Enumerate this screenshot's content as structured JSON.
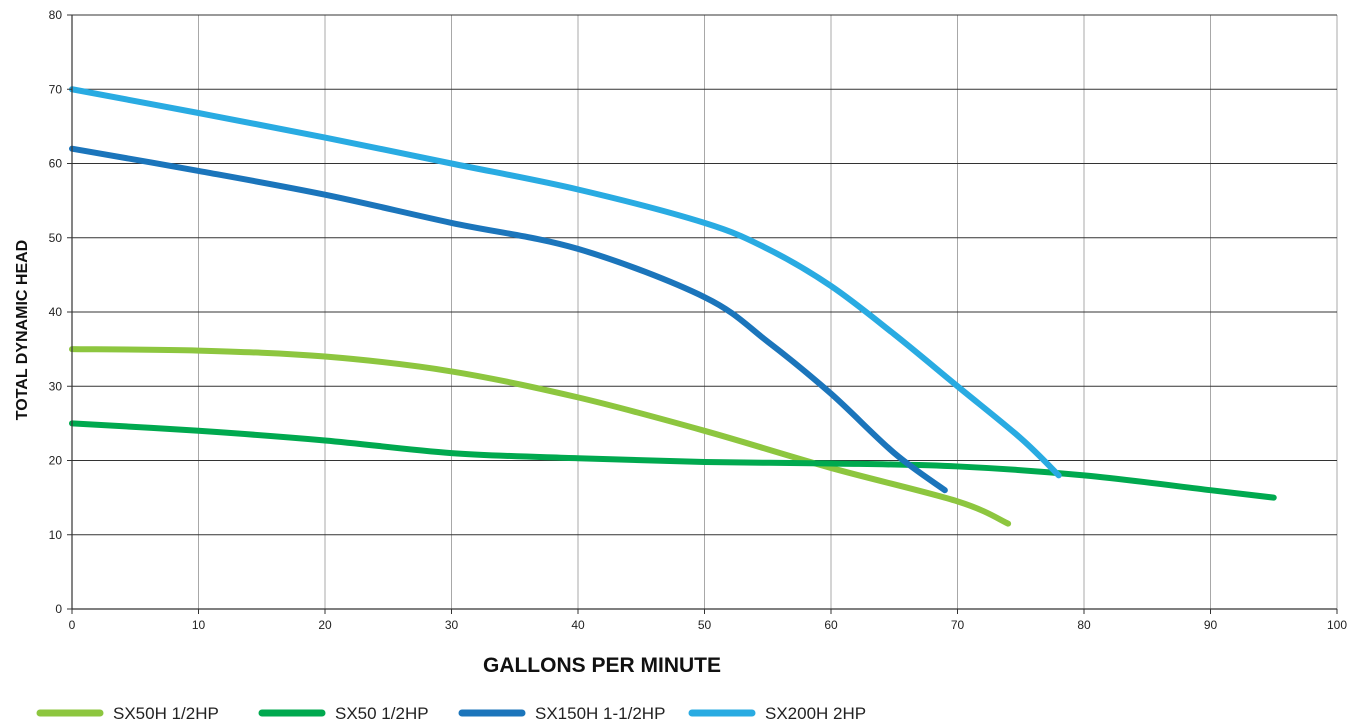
{
  "chart_data": {
    "type": "line",
    "xlabel": "GALLONS PER MINUTE",
    "ylabel": "TOTAL DYNAMIC HEAD",
    "xlim": [
      0,
      100
    ],
    "ylim": [
      0,
      80
    ],
    "xticks": [
      0,
      10,
      20,
      30,
      40,
      50,
      60,
      70,
      80,
      90,
      100
    ],
    "yticks": [
      0,
      10,
      20,
      30,
      40,
      50,
      60,
      70,
      80
    ],
    "grid": true,
    "legend_position": "bottom-left",
    "series": [
      {
        "name": "SX50H 1/2HP",
        "color": "#8dc63f",
        "x": [
          0,
          10,
          20,
          30,
          40,
          50,
          60,
          70,
          74
        ],
        "y": [
          35,
          34.8,
          34,
          32,
          28.5,
          24,
          19,
          14.5,
          11.5
        ]
      },
      {
        "name": "SX50 1/2HP",
        "color": "#00a94f",
        "x": [
          0,
          10,
          20,
          30,
          40,
          50,
          60,
          70,
          80,
          90,
          95
        ],
        "y": [
          25,
          24,
          22.7,
          21,
          20.3,
          19.8,
          19.6,
          19.2,
          18,
          16,
          15
        ]
      },
      {
        "name": "SX150H 1-1/2HP",
        "color": "#1b75bb",
        "x": [
          0,
          10,
          20,
          30,
          40,
          50,
          55,
          60,
          65,
          69
        ],
        "y": [
          62,
          59,
          55.8,
          52,
          48.5,
          42,
          36,
          29,
          21,
          16
        ]
      },
      {
        "name": "SX200H 2HP",
        "color": "#29abe2",
        "x": [
          0,
          10,
          20,
          30,
          40,
          50,
          55,
          60,
          65,
          70,
          75,
          78
        ],
        "y": [
          70,
          66.8,
          63.5,
          60,
          56.5,
          52,
          48.5,
          43.5,
          37,
          30,
          23,
          18
        ]
      }
    ]
  }
}
